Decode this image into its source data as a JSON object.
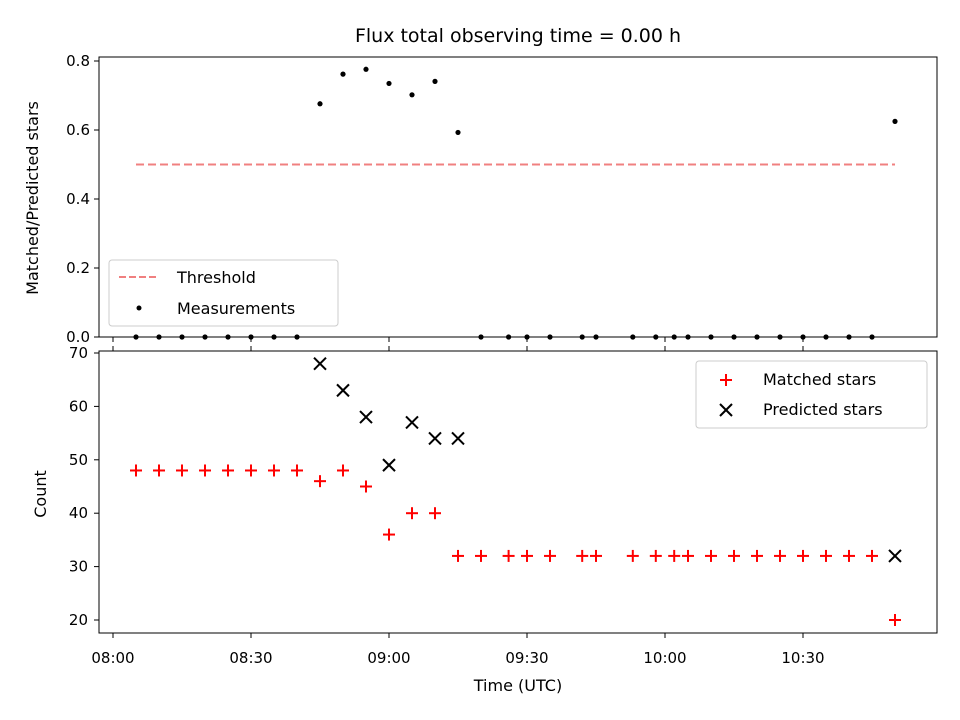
{
  "chart_data": [
    {
      "type": "scatter",
      "title": "Flux total observing time = 0.00 h",
      "xlabel": "",
      "ylabel": "Matched/Predicted stars",
      "xlim": [
        "08:00",
        "10:56"
      ],
      "ylim": [
        0,
        0.8
      ],
      "yticks": [
        "0.0",
        "0.2",
        "0.4",
        "0.6",
        "0.8"
      ],
      "xticks": [
        "08:00",
        "08:30",
        "09:00",
        "09:30",
        "10:00",
        "10:30"
      ],
      "legend": {
        "position": "lower-left",
        "entries": [
          "Threshold",
          "Measurements"
        ]
      },
      "threshold": {
        "name": "Threshold",
        "x": [
          "08:05",
          "10:50"
        ],
        "y": 0.5,
        "color": "#f08080",
        "style": "dashed"
      },
      "measurements": {
        "name": "Measurements",
        "color": "#000000",
        "x": [
          "08:05",
          "08:10",
          "08:15",
          "08:20",
          "08:25",
          "08:30",
          "08:35",
          "08:40",
          "08:45",
          "08:50",
          "08:55",
          "09:00",
          "09:05",
          "09:10",
          "09:15",
          "09:20",
          "09:26",
          "09:30",
          "09:35",
          "09:42",
          "09:45",
          "09:53",
          "09:58",
          "10:02",
          "10:05",
          "10:10",
          "10:15",
          "10:20",
          "10:25",
          "10:30",
          "10:35",
          "10:40",
          "10:45",
          "10:50"
        ],
        "y": [
          0,
          0,
          0,
          0,
          0,
          0,
          0,
          0,
          0.676,
          0.762,
          0.776,
          0.735,
          0.702,
          0.741,
          0.593,
          0,
          0,
          0,
          0,
          0,
          0,
          0,
          0,
          0,
          0,
          0,
          0,
          0,
          0,
          0,
          0,
          0,
          0,
          0.625
        ]
      }
    },
    {
      "type": "scatter",
      "title": "",
      "xlabel": "Time (UTC)",
      "ylabel": "Count",
      "xlim": [
        "08:00",
        "10:56"
      ],
      "ylim": [
        18,
        70
      ],
      "yticks": [
        "20",
        "30",
        "40",
        "50",
        "60",
        "70"
      ],
      "xticks": [
        "08:00",
        "08:30",
        "09:00",
        "09:30",
        "10:00",
        "10:30"
      ],
      "legend": {
        "position": "top-right",
        "entries": [
          "Matched stars",
          "Predicted stars"
        ]
      },
      "series": [
        {
          "name": "Matched stars",
          "marker": "plus",
          "color": "#ff0000",
          "x": [
            "08:05",
            "08:10",
            "08:15",
            "08:20",
            "08:25",
            "08:30",
            "08:35",
            "08:40",
            "08:45",
            "08:50",
            "08:55",
            "09:00",
            "09:05",
            "09:10",
            "09:15",
            "09:20",
            "09:26",
            "09:30",
            "09:35",
            "09:42",
            "09:45",
            "09:53",
            "09:58",
            "10:02",
            "10:05",
            "10:10",
            "10:15",
            "10:20",
            "10:25",
            "10:30",
            "10:35",
            "10:40",
            "10:45",
            "10:50"
          ],
          "y": [
            48,
            48,
            48,
            48,
            48,
            48,
            48,
            48,
            46,
            48,
            45,
            36,
            40,
            40,
            32,
            32,
            32,
            32,
            32,
            32,
            32,
            32,
            32,
            32,
            32,
            32,
            32,
            32,
            32,
            32,
            32,
            32,
            32,
            20
          ]
        },
        {
          "name": "Predicted stars",
          "marker": "x",
          "color": "#000000",
          "x": [
            "08:45",
            "08:50",
            "08:55",
            "09:00",
            "09:05",
            "09:10",
            "09:15",
            "10:50"
          ],
          "y": [
            68,
            63,
            58,
            49,
            57,
            54,
            54,
            32
          ]
        }
      ]
    }
  ]
}
